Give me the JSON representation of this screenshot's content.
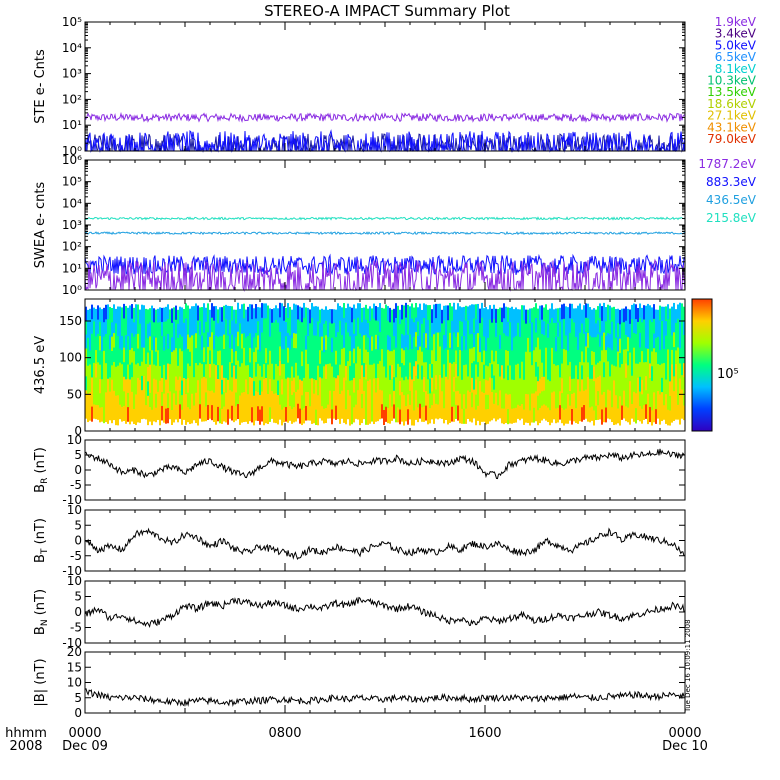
{
  "title": "STEREO-A IMPACT Summary Plot",
  "x_axis": {
    "row_label_1": "hhmm",
    "row_label_2": "2008",
    "ticks": [
      {
        "time": "0000",
        "date": "Dec 09",
        "hour": 0
      },
      {
        "time": "0800",
        "date": "",
        "hour": 8
      },
      {
        "time": "1600",
        "date": "",
        "hour": 16
      },
      {
        "time": "0000",
        "date": "Dec 10",
        "hour": 24
      }
    ]
  },
  "timestamp": "Tue Dec 16 10:09:11 2008",
  "colors": {
    "ste_low": "#8a2be2",
    "ste_high": "#1010ff",
    "swea_215": "#20e0c0",
    "swea_436": "#20a0e0",
    "swea_883": "#1010ff",
    "swea_1787": "#8a2be2",
    "mag": "#000000"
  },
  "chart_data": [
    {
      "type": "line",
      "id": "ste",
      "ylabel": "STE e- Cnts",
      "yscale": "log",
      "ylim": [
        1,
        100000
      ],
      "yticks": [
        1,
        10,
        100,
        1000,
        10000,
        100000
      ],
      "ytick_labels": [
        "10⁰",
        "10¹",
        "10²",
        "10³",
        "10⁴",
        "10⁵"
      ],
      "xlim": [
        0,
        24
      ],
      "series": [
        {
          "name": "1.9keV",
          "color": "#8a2be2",
          "level": 20,
          "noise": 0.05
        },
        {
          "name": "3.4keV",
          "color": "#1a1aa0",
          "level": 1.4,
          "noise": 0.18
        },
        {
          "name": "5.0keV",
          "color": "#1010ff",
          "level": 1.5,
          "noise": 0.2
        }
      ],
      "legend": [
        {
          "name": "1.9keV",
          "color": "#8a2be2"
        },
        {
          "name": "3.4keV",
          "color": "#4b0082"
        },
        {
          "name": "5.0keV",
          "color": "#1010ff"
        },
        {
          "name": "6.5keV",
          "color": "#2090ff"
        },
        {
          "name": "8.1keV",
          "color": "#00d0d0"
        },
        {
          "name": "10.3keV",
          "color": "#00c070"
        },
        {
          "name": "13.5keV",
          "color": "#30d000"
        },
        {
          "name": "18.6keV",
          "color": "#b0d000"
        },
        {
          "name": "27.1keV",
          "color": "#e0c000"
        },
        {
          "name": "43.1keV",
          "color": "#f09000"
        },
        {
          "name": "79.0keV",
          "color": "#e03000"
        }
      ],
      "legend_placement": "right"
    },
    {
      "type": "line",
      "id": "swea",
      "ylabel": "SWEA e- cnts",
      "yscale": "log",
      "ylim": [
        1,
        1000000
      ],
      "yticks": [
        1,
        10,
        100,
        1000,
        10000,
        100000,
        1000000
      ],
      "ytick_labels": [
        "10⁰",
        "10¹",
        "10²",
        "10³",
        "10⁴",
        "10⁵",
        "10⁶"
      ],
      "xlim": [
        0,
        24
      ],
      "series": [
        {
          "name": "215.8eV",
          "color": "#20e0c0",
          "level": 2000,
          "noise": 0.05
        },
        {
          "name": "436.5eV",
          "color": "#20a0e0",
          "level": 420,
          "noise": 0.05
        },
        {
          "name": "883.3eV",
          "color": "#1010ff",
          "level": 14,
          "noise": 0.15
        },
        {
          "name": "1787.2eV",
          "color": "#8a2be2",
          "level": 3,
          "noise": 0.3
        }
      ],
      "legend": [
        {
          "name": "1787.2eV",
          "color": "#8a2be2"
        },
        {
          "name": "883.3eV",
          "color": "#1010ff"
        },
        {
          "name": "436.5eV",
          "color": "#20a0e0"
        },
        {
          "name": "215.8eV",
          "color": "#20e0c0"
        }
      ],
      "legend_placement": "right"
    },
    {
      "type": "heatmap",
      "id": "pad",
      "ylabel": "436.5 eV",
      "ylim": [
        0,
        180
      ],
      "yticks": [
        0,
        50,
        100,
        150
      ],
      "ytick_labels": [
        "0",
        "50",
        "100",
        "150"
      ],
      "xlim": [
        0,
        24
      ],
      "colorbar_label": "10⁵",
      "colorbar_colors": [
        "#3000c0",
        "#0040ff",
        "#00c0ff",
        "#00ff80",
        "#a0ff00",
        "#ffd000",
        "#ff4000"
      ]
    },
    {
      "type": "line",
      "id": "br",
      "ylabel": "B",
      "ylabel_sub": "R",
      "ylabel_unit": " (nT)",
      "ylim": [
        -10,
        10
      ],
      "yticks": [
        -10,
        -5,
        0,
        5,
        10
      ],
      "ytick_labels": [
        "-10",
        "-5",
        "0",
        "5",
        "10"
      ],
      "xlim": [
        0,
        24
      ],
      "x": [
        0,
        0.5,
        1,
        1.5,
        2,
        2.5,
        3,
        3.5,
        4,
        4.5,
        5,
        5.5,
        6,
        6.5,
        7,
        7.5,
        8,
        8.5,
        9,
        9.5,
        10,
        10.5,
        11,
        11.5,
        12,
        12.5,
        13,
        13.5,
        14,
        14.5,
        15,
        15.5,
        16,
        16.5,
        17,
        17.5,
        18,
        18.5,
        19,
        19.5,
        20,
        20.5,
        21,
        21.5,
        22,
        22.5,
        23,
        23.5,
        24
      ],
      "values": [
        5,
        4,
        2,
        -1,
        0,
        -2,
        0,
        1,
        -1,
        2,
        3,
        1,
        -1,
        -2,
        1,
        3,
        2,
        1,
        2,
        3,
        2,
        3,
        2,
        3,
        3,
        4,
        2,
        3,
        3,
        2,
        4,
        3,
        -1,
        -2,
        2,
        3,
        4,
        3,
        2,
        3,
        4,
        4,
        5,
        4,
        5,
        5,
        6,
        5,
        5
      ]
    },
    {
      "type": "line",
      "id": "bt",
      "ylabel": "B",
      "ylabel_sub": "T",
      "ylabel_unit": " (nT)",
      "ylim": [
        -10,
        10
      ],
      "yticks": [
        -10,
        -5,
        0,
        5,
        10
      ],
      "ytick_labels": [
        "-10",
        "-5",
        "0",
        "5",
        "10"
      ],
      "xlim": [
        0,
        24
      ],
      "x": [
        0,
        0.5,
        1,
        1.5,
        2,
        2.5,
        3,
        3.5,
        4,
        4.5,
        5,
        5.5,
        6,
        6.5,
        7,
        7.5,
        8,
        8.5,
        9,
        9.5,
        10,
        10.5,
        11,
        11.5,
        12,
        12.5,
        13,
        13.5,
        14,
        14.5,
        15,
        15.5,
        16,
        16.5,
        17,
        17.5,
        18,
        18.5,
        19,
        19.5,
        20,
        20.5,
        21,
        21.5,
        22,
        22.5,
        23,
        23.5,
        24
      ],
      "values": [
        0,
        -3,
        -2,
        -3,
        2,
        3,
        1,
        -1,
        2,
        1,
        -2,
        0,
        -3,
        -4,
        -2,
        -3,
        -4,
        -5,
        -3,
        -4,
        -2,
        -3,
        -4,
        -2,
        -1,
        -3,
        -4,
        -3,
        -4,
        -2,
        -3,
        -1,
        -2,
        -1,
        -3,
        -4,
        -3,
        0,
        -2,
        -3,
        -1,
        1,
        3,
        0,
        2,
        1,
        0,
        -1,
        -5
      ]
    },
    {
      "type": "line",
      "id": "bn",
      "ylabel": "B",
      "ylabel_sub": "N",
      "ylabel_unit": " (nT)",
      "ylim": [
        -10,
        10
      ],
      "yticks": [
        -10,
        -5,
        0,
        5,
        10
      ],
      "ytick_labels": [
        "-10",
        "-5",
        "0",
        "5",
        "10"
      ],
      "xlim": [
        0,
        24
      ],
      "x": [
        0,
        0.5,
        1,
        1.5,
        2,
        2.5,
        3,
        3.5,
        4,
        4.5,
        5,
        5.5,
        6,
        6.5,
        7,
        7.5,
        8,
        8.5,
        9,
        9.5,
        10,
        10.5,
        11,
        11.5,
        12,
        12.5,
        13,
        13.5,
        14,
        14.5,
        15,
        15.5,
        16,
        16.5,
        17,
        17.5,
        18,
        18.5,
        19,
        19.5,
        20,
        20.5,
        21,
        21.5,
        22,
        22.5,
        23,
        23.5,
        24
      ],
      "values": [
        -1,
        1,
        -2,
        -1,
        -3,
        -4,
        -3,
        -1,
        2,
        1,
        3,
        2,
        4,
        3,
        2,
        3,
        2,
        1,
        2,
        1,
        3,
        2,
        4,
        3,
        2,
        1,
        2,
        0,
        -1,
        -3,
        -2,
        -4,
        -2,
        -3,
        -2,
        -1,
        -3,
        -2,
        -1,
        -2,
        -1,
        0,
        -1,
        -2,
        -1,
        0,
        1,
        2,
        1
      ]
    },
    {
      "type": "line",
      "id": "bmag",
      "ylabel": "|B|",
      "ylabel_sub": "",
      "ylabel_unit": " (nT)",
      "ylim": [
        0,
        20
      ],
      "yticks": [
        0,
        5,
        10,
        15,
        20
      ],
      "ytick_labels": [
        "0",
        "5",
        "10",
        "15",
        "20"
      ],
      "xlim": [
        0,
        24
      ],
      "x": [
        0,
        0.5,
        1,
        1.5,
        2,
        2.5,
        3,
        3.5,
        4,
        4.5,
        5,
        5.5,
        6,
        6.5,
        7,
        7.5,
        8,
        8.5,
        9,
        9.5,
        10,
        10.5,
        11,
        11.5,
        12,
        12.5,
        13,
        13.5,
        14,
        14.5,
        15,
        15.5,
        16,
        16.5,
        17,
        17.5,
        18,
        18.5,
        19,
        19.5,
        20,
        20.5,
        21,
        21.5,
        22,
        22.5,
        23,
        23.5,
        24
      ],
      "values": [
        7,
        6,
        5,
        5,
        5,
        4.5,
        4,
        3.5,
        3.5,
        4,
        4,
        3.5,
        3.5,
        4,
        4,
        4.5,
        4.5,
        4,
        4,
        4.5,
        5,
        4.5,
        5,
        4.5,
        4.5,
        5,
        4.5,
        4.5,
        5,
        5,
        5,
        4.5,
        5,
        5,
        5,
        5,
        4.5,
        5,
        5,
        5.5,
        5,
        5,
        5.5,
        5.5,
        6,
        5.5,
        5.5,
        6,
        5.5
      ]
    }
  ]
}
